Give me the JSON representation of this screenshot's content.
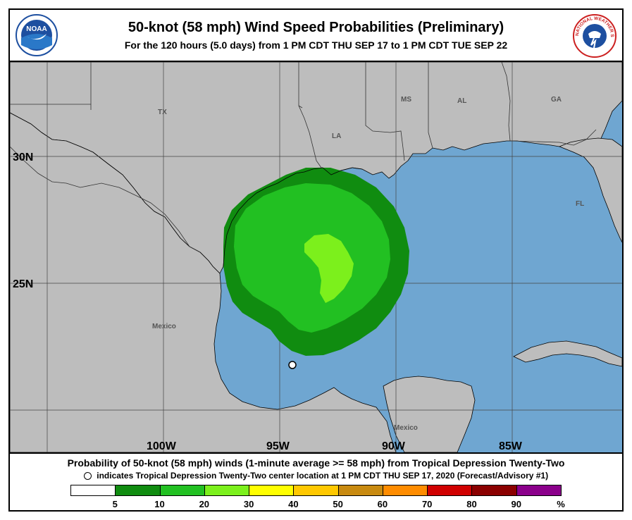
{
  "header": {
    "title": "50-knot (58 mph) Wind Speed Probabilities (Preliminary)",
    "subtitle": "For the 120 hours (5.0 days) from 1 PM CDT THU SEP 17 to 1 PM CDT TUE SEP 22",
    "left_logo_text": "NOAA",
    "right_logo_text": "NATIONAL WEATHER SERVICE"
  },
  "map": {
    "lat_labels": [
      "30N",
      "25N"
    ],
    "lon_labels": [
      "100W",
      "95W",
      "90W",
      "85W"
    ],
    "region_labels": {
      "tx": "TX",
      "la": "LA",
      "ms": "MS",
      "al": "AL",
      "ga": "GA",
      "fl": "FL",
      "mexico_west": "Mexico",
      "mexico_yucatan": "Mexico"
    },
    "colors": {
      "land": "#bdbdbd",
      "water": "#6fa6d1",
      "prob_5_10": "#108c10",
      "prob_10_20": "#22c022",
      "prob_20_30": "#7cf01c",
      "storm_marker": "#ffffff"
    }
  },
  "footer": {
    "line1": "Probability of 50-knot (58 mph) winds (1-minute average >= 58 mph) from Tropical Depression Twenty-Two",
    "line2": "indicates Tropical Depression Twenty-Two center location at 1 PM CDT THU SEP 17, 2020 (Forecast/Advisory #1)",
    "legend_colors": [
      "#ffffff",
      "#108c10",
      "#22c022",
      "#7cf01c",
      "#ffff00",
      "#ffc800",
      "#c88a10",
      "#ff8c00",
      "#d00000",
      "#8b0000",
      "#8b008b"
    ],
    "legend_ticks": [
      "5",
      "10",
      "20",
      "30",
      "40",
      "50",
      "60",
      "70",
      "80",
      "90",
      "%"
    ]
  }
}
